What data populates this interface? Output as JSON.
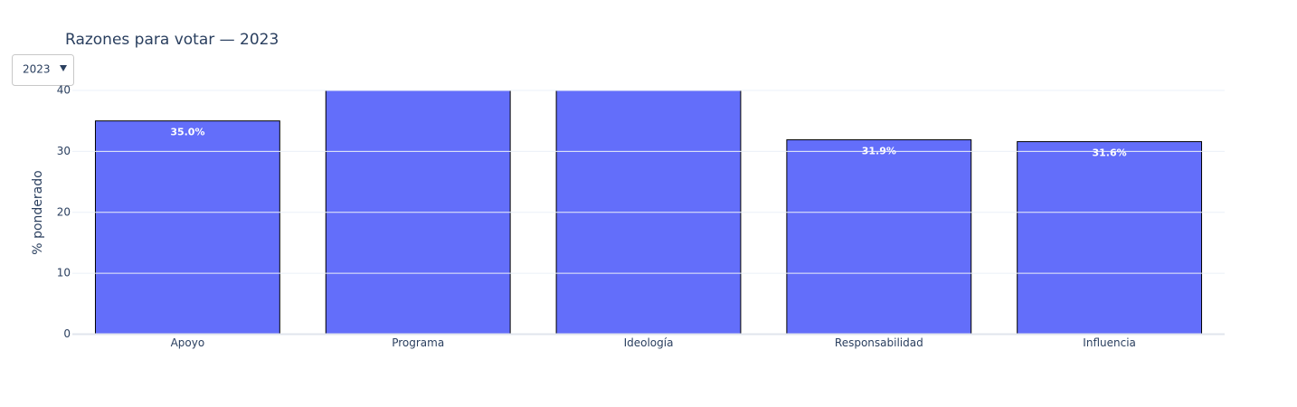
{
  "chart_data": {
    "type": "bar",
    "title": "Razones para votar — 2023",
    "y_label": "% ponderado",
    "categories": [
      "Apoyo",
      "Programa",
      "Ideología",
      "Responsabilidad",
      "Influencia"
    ],
    "values": [
      35.0,
      40,
      40,
      31.9,
      31.6
    ],
    "value_labels": [
      "35.0%",
      null,
      null,
      "31.9%",
      "31.6%"
    ],
    "color": "#636efa",
    "ylim": [
      0,
      40
    ],
    "yticks": [
      0,
      10,
      20,
      30,
      40
    ],
    "grid": true
  },
  "dropdown": {
    "label": "2023"
  }
}
